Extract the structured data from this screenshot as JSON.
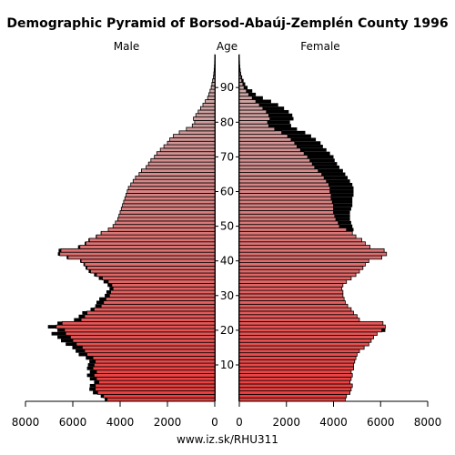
{
  "title": "Demographic Pyramid of Borsod-Abaúj-Zemplén County 1996",
  "source": "www.iz.sk/RHU311",
  "chart_data": {
    "type": "bar",
    "orientation": "horizontal",
    "left_header": "Male",
    "center_header": "Age",
    "right_header": "Female",
    "age_ticks": [
      "10",
      "20",
      "30",
      "40",
      "50",
      "60",
      "70",
      "80",
      "90"
    ],
    "x_ticks_left": [
      "8000",
      "6000",
      "4000",
      "2000",
      "0"
    ],
    "x_ticks_right": [
      "0",
      "2000",
      "4000",
      "6000",
      "8000"
    ],
    "xlim": [
      0,
      8000
    ],
    "ages": [
      0,
      1,
      2,
      3,
      4,
      5,
      6,
      7,
      8,
      9,
      10,
      11,
      12,
      13,
      14,
      15,
      16,
      17,
      18,
      19,
      20,
      21,
      22,
      23,
      24,
      25,
      26,
      27,
      28,
      29,
      30,
      31,
      32,
      33,
      34,
      35,
      36,
      37,
      38,
      39,
      40,
      41,
      42,
      43,
      44,
      45,
      46,
      47,
      48,
      49,
      50,
      51,
      52,
      53,
      54,
      55,
      56,
      57,
      58,
      59,
      60,
      61,
      62,
      63,
      64,
      65,
      66,
      67,
      68,
      69,
      70,
      71,
      72,
      73,
      74,
      75,
      76,
      77,
      78,
      79,
      80,
      81,
      82,
      83,
      84,
      85,
      86,
      87,
      88,
      89,
      90,
      91,
      92,
      93,
      94,
      95,
      96,
      97,
      98,
      99
    ],
    "series": [
      {
        "name": "Male",
        "values": [
          4550,
          4700,
          4950,
          5050,
          5050,
          4900,
          5000,
          5100,
          5000,
          5150,
          5100,
          5050,
          5150,
          5400,
          5500,
          5600,
          5850,
          6000,
          6100,
          6300,
          6350,
          6700,
          6450,
          5650,
          5500,
          5400,
          5100,
          4800,
          4700,
          4600,
          4450,
          4400,
          4300,
          4350,
          4500,
          4750,
          5000,
          5250,
          5400,
          5500,
          5650,
          6200,
          6550,
          6500,
          5700,
          5450,
          5300,
          5000,
          4800,
          4500,
          4300,
          4200,
          4100,
          4050,
          4000,
          3950,
          3900,
          3850,
          3800,
          3750,
          3700,
          3650,
          3550,
          3450,
          3350,
          3200,
          3100,
          2900,
          2800,
          2700,
          2550,
          2450,
          2300,
          2150,
          2000,
          1900,
          1750,
          1500,
          1200,
          950,
          850,
          900,
          800,
          700,
          600,
          500,
          400,
          300,
          250,
          200,
          150,
          120,
          90,
          60,
          40,
          25,
          15,
          8,
          4,
          2
        ],
        "excess": [
          100,
          120,
          200,
          250,
          230,
          200,
          280,
          300,
          280,
          250,
          260,
          250,
          300,
          350,
          380,
          420,
          450,
          500,
          550,
          600,
          300,
          350,
          200,
          300,
          250,
          200,
          150,
          250,
          300,
          280,
          200,
          180,
          150,
          180,
          200,
          150,
          100,
          80,
          60,
          50,
          40,
          60,
          80,
          100,
          80,
          50,
          40,
          30,
          20,
          0,
          0,
          0,
          0,
          0,
          0,
          0,
          0,
          0,
          0,
          0,
          0,
          0,
          0,
          0,
          0,
          0,
          0,
          0,
          0,
          0,
          0,
          0,
          0,
          0,
          0,
          0,
          0,
          0,
          0,
          0,
          0,
          0,
          0,
          0,
          0,
          0,
          0,
          0,
          0,
          0,
          0,
          0,
          0,
          0,
          0,
          0,
          0,
          0,
          0,
          0
        ]
      },
      {
        "name": "Female",
        "values": [
          4500,
          4550,
          4700,
          4750,
          4800,
          4700,
          4750,
          4800,
          4750,
          4850,
          4850,
          4900,
          4950,
          5000,
          5100,
          5300,
          5500,
          5600,
          5700,
          5850,
          6050,
          6200,
          6100,
          5100,
          5000,
          4850,
          4750,
          4600,
          4500,
          4450,
          4400,
          4400,
          4350,
          4400,
          4550,
          4750,
          4950,
          5100,
          5250,
          5350,
          5500,
          6050,
          6250,
          6150,
          5550,
          5350,
          5200,
          4950,
          4800,
          4550,
          4250,
          4200,
          4100,
          4050,
          4000,
          4000,
          4000,
          3950,
          3900,
          3900,
          3850,
          3850,
          3800,
          3700,
          3600,
          3500,
          3350,
          3200,
          3100,
          3000,
          2900,
          2750,
          2600,
          2450,
          2350,
          2200,
          2050,
          1800,
          1500,
          1250,
          1200,
          1300,
          1250,
          1150,
          1000,
          850,
          700,
          550,
          400,
          300,
          200,
          150,
          100,
          70,
          45,
          30,
          18,
          10,
          5,
          2
        ],
        "excess": [
          0,
          0,
          0,
          0,
          0,
          0,
          0,
          0,
          0,
          0,
          0,
          0,
          0,
          0,
          0,
          0,
          0,
          0,
          0,
          0,
          150,
          0,
          0,
          0,
          0,
          0,
          0,
          0,
          0,
          0,
          0,
          0,
          0,
          0,
          0,
          0,
          0,
          0,
          0,
          0,
          0,
          0,
          0,
          0,
          0,
          0,
          0,
          0,
          0,
          300,
          550,
          550,
          600,
          650,
          700,
          750,
          800,
          850,
          900,
          950,
          1000,
          1000,
          1000,
          1000,
          1000,
          1000,
          1050,
          1050,
          1050,
          1050,
          1100,
          1100,
          1100,
          1100,
          1100,
          1050,
          1000,
          1000,
          950,
          950,
          950,
          1000,
          1000,
          950,
          900,
          800,
          650,
          450,
          300,
          250,
          150,
          100,
          80,
          50,
          30,
          20,
          10,
          6,
          3,
          1
        ]
      }
    ]
  }
}
